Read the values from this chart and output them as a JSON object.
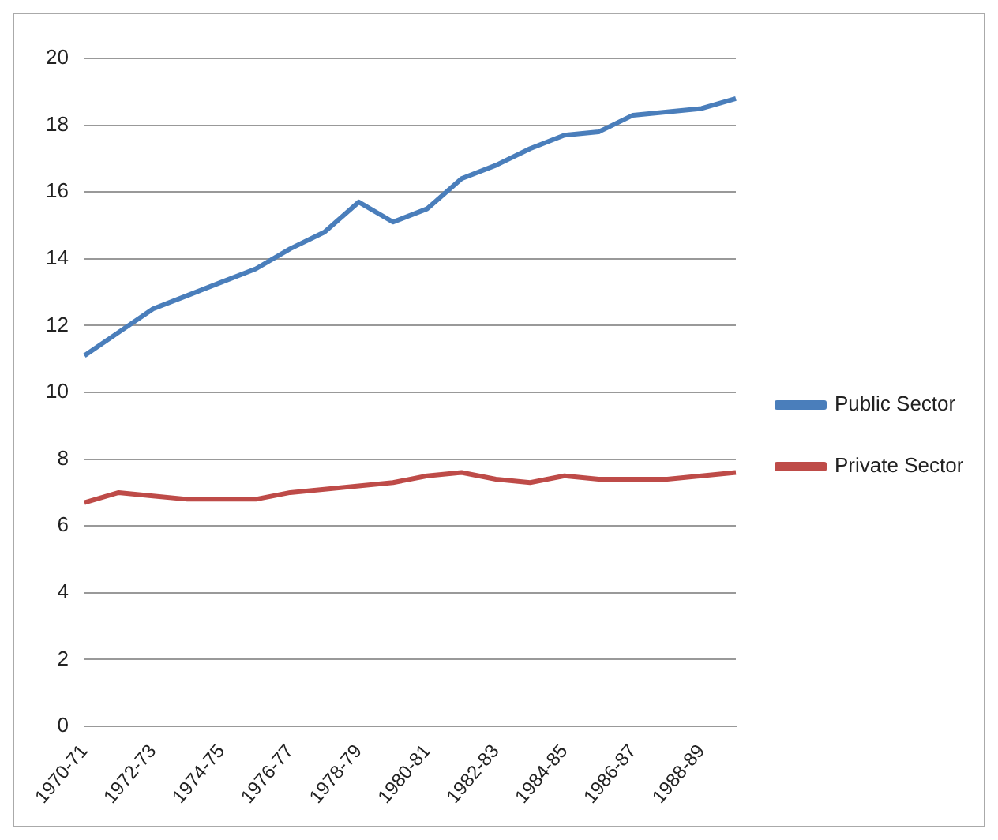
{
  "chart_data": {
    "type": "line",
    "categories": [
      "1970-71",
      null,
      "1972-73",
      null,
      "1974-75",
      null,
      "1976-77",
      null,
      "1978-79",
      null,
      "1980-81",
      null,
      "1982-83",
      null,
      "1984-85",
      null,
      "1986-87",
      null,
      "1988-89",
      null
    ],
    "series": [
      {
        "name": "Public Sector",
        "color": "#4a7ebb",
        "values": [
          11.1,
          11.8,
          12.5,
          12.9,
          13.3,
          13.7,
          14.3,
          14.8,
          15.7,
          15.1,
          15.5,
          16.4,
          16.8,
          17.3,
          17.7,
          17.8,
          18.3,
          18.4,
          18.5,
          18.8
        ]
      },
      {
        "name": "Private Sector",
        "color": "#be4b48",
        "values": [
          6.7,
          7.0,
          6.9,
          6.8,
          6.8,
          6.8,
          7.0,
          7.1,
          7.2,
          7.3,
          7.5,
          7.6,
          7.4,
          7.3,
          7.5,
          7.4,
          7.4,
          7.4,
          7.5,
          7.6
        ]
      }
    ],
    "ylim": [
      0,
      20
    ],
    "yticks": [
      0,
      2,
      4,
      6,
      8,
      10,
      12,
      14,
      16,
      18,
      20
    ],
    "grid": "y",
    "legend": "right",
    "marker": "none",
    "line_style": "solid"
  }
}
